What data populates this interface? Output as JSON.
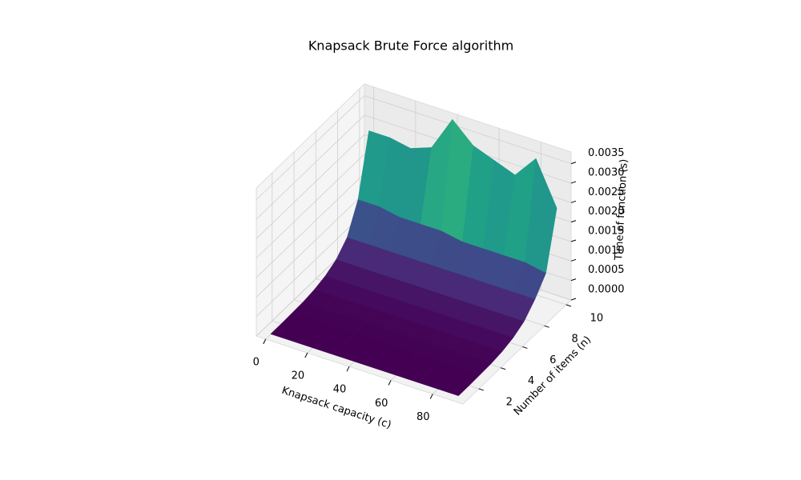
{
  "chart_data": {
    "type": "surface3d",
    "title": "Knapsack Brute Force algorithm",
    "xlabel": "Knapsack capacity (c)",
    "ylabel": "Number of items (n)",
    "zlabel": "Time of function (s)",
    "x": [
      0,
      10,
      20,
      30,
      40,
      50,
      60,
      70,
      80,
      90
    ],
    "y": [
      1,
      2,
      3,
      4,
      5,
      6,
      7,
      8,
      9,
      10
    ],
    "z": [
      [
        1e-05,
        1e-05,
        1e-05,
        1e-05,
        1e-05,
        1e-05,
        1e-05,
        1e-05,
        1e-05,
        1e-05
      ],
      [
        1e-05,
        1e-05,
        1e-05,
        1e-05,
        1e-05,
        1e-05,
        1e-05,
        1e-05,
        1e-05,
        1e-05
      ],
      [
        2e-05,
        2e-05,
        2e-05,
        2e-05,
        2e-05,
        2e-05,
        2e-05,
        2e-05,
        2e-05,
        2e-05
      ],
      [
        3e-05,
        3e-05,
        3e-05,
        3e-05,
        3e-05,
        3e-05,
        3e-05,
        3e-05,
        3e-05,
        3e-05
      ],
      [
        7e-05,
        7e-05,
        7e-05,
        7e-05,
        7e-05,
        7e-05,
        7e-05,
        7e-05,
        7e-05,
        7e-05
      ],
      [
        0.00015,
        0.00015,
        0.00015,
        0.00015,
        0.00015,
        0.00015,
        0.00015,
        0.00015,
        0.00015,
        0.00015
      ],
      [
        0.0003,
        0.0003,
        0.0003,
        0.0003,
        0.0003,
        0.0003,
        0.0003,
        0.0003,
        0.0003,
        0.0003
      ],
      [
        0.0006,
        0.0006,
        0.0006,
        0.0006,
        0.0006,
        0.0006,
        0.0006,
        0.0006,
        0.0006,
        0.0006
      ],
      [
        0.0013,
        0.0013,
        0.0012,
        0.0012,
        0.0012,
        0.0011,
        0.0011,
        0.0011,
        0.0011,
        0.001
      ],
      [
        0.0028,
        0.0028,
        0.0027,
        0.0029,
        0.0038,
        0.0033,
        0.0031,
        0.0029,
        0.0035,
        0.0024
      ]
    ],
    "colormap": "viridis",
    "xlim": [
      -4.5,
      94.5
    ],
    "ylim": [
      0.55,
      10.45
    ],
    "zlim": [
      0,
      0.0038
    ],
    "xticks": [
      0,
      20,
      40,
      60,
      80
    ],
    "yticks": [
      2,
      4,
      6,
      8,
      10
    ],
    "zticks": [
      {
        "value": 0,
        "label": "0.0000"
      },
      {
        "value": 0.0005,
        "label": "0.0005"
      },
      {
        "value": 0.001,
        "label": "0.0010"
      },
      {
        "value": 0.0015,
        "label": "0.0015"
      },
      {
        "value": 0.002,
        "label": "0.0020"
      },
      {
        "value": 0.0025,
        "label": "0.0025"
      },
      {
        "value": 0.003,
        "label": "0.0030"
      },
      {
        "value": 0.0035,
        "label": "0.0035"
      }
    ],
    "grid": true
  }
}
